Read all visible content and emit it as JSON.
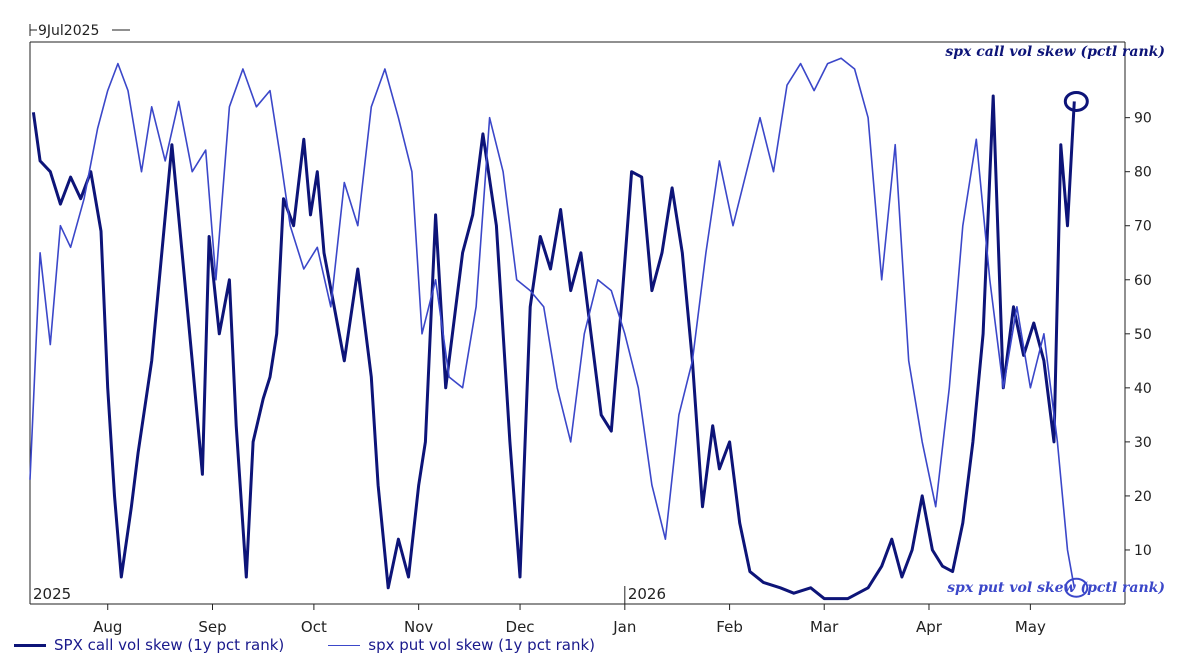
{
  "chart_data": {
    "type": "line",
    "top_label": "9Jul2025",
    "year_labels": [
      {
        "label": "2025",
        "date": "2025-07-09"
      },
      {
        "label": "2026",
        "date": "2026-01-01"
      }
    ],
    "month_labels": [
      {
        "label": "Aug",
        "date": "2025-08-01"
      },
      {
        "label": "Sep",
        "date": "2025-09-01"
      },
      {
        "label": "Oct",
        "date": "2025-10-01"
      },
      {
        "label": "Nov",
        "date": "2025-11-01"
      },
      {
        "label": "Dec",
        "date": "2025-12-01"
      },
      {
        "label": "Jan",
        "date": "2026-01-01"
      },
      {
        "label": "Feb",
        "date": "2026-02-01"
      },
      {
        "label": "Mar",
        "date": "2026-03-01"
      },
      {
        "label": "Apr",
        "date": "2026-04-01"
      },
      {
        "label": "May",
        "date": "2026-05-01"
      }
    ],
    "x_range": [
      "2025-07-09",
      "2026-05-29"
    ],
    "y_axis": {
      "position": "right",
      "ticks": [
        10,
        20,
        30,
        40,
        50,
        60,
        70,
        80,
        90
      ],
      "ylim": [
        0,
        104
      ]
    },
    "grid": false,
    "legend_position": "bottom-left",
    "series": [
      {
        "name": "SPX call vol skew (1y pct rank)",
        "color": "#0d1478",
        "annotation": "spx call vol skew (pctl rank)",
        "points": [
          [
            "2025-07-10",
            91
          ],
          [
            "2025-07-12",
            82
          ],
          [
            "2025-07-15",
            80
          ],
          [
            "2025-07-18",
            74
          ],
          [
            "2025-07-21",
            79
          ],
          [
            "2025-07-24",
            75
          ],
          [
            "2025-07-27",
            80
          ],
          [
            "2025-07-30",
            69
          ],
          [
            "2025-08-01",
            40
          ],
          [
            "2025-08-03",
            20
          ],
          [
            "2025-08-05",
            5
          ],
          [
            "2025-08-08",
            18
          ],
          [
            "2025-08-10",
            28
          ],
          [
            "2025-08-14",
            45
          ],
          [
            "2025-08-17",
            65
          ],
          [
            "2025-08-20",
            85
          ],
          [
            "2025-08-23",
            65
          ],
          [
            "2025-08-26",
            45
          ],
          [
            "2025-08-29",
            24
          ],
          [
            "2025-08-31",
            68
          ],
          [
            "2025-09-03",
            50
          ],
          [
            "2025-09-06",
            60
          ],
          [
            "2025-09-08",
            33
          ],
          [
            "2025-09-11",
            5
          ],
          [
            "2025-09-13",
            30
          ],
          [
            "2025-09-16",
            38
          ],
          [
            "2025-09-18",
            42
          ],
          [
            "2025-09-20",
            50
          ],
          [
            "2025-09-22",
            75
          ],
          [
            "2025-09-25",
            70
          ],
          [
            "2025-09-28",
            86
          ],
          [
            "2025-09-30",
            72
          ],
          [
            "2025-10-02",
            80
          ],
          [
            "2025-10-04",
            65
          ],
          [
            "2025-10-07",
            55
          ],
          [
            "2025-10-10",
            45
          ],
          [
            "2025-10-14",
            62
          ],
          [
            "2025-10-18",
            42
          ],
          [
            "2025-10-20",
            22
          ],
          [
            "2025-10-23",
            3
          ],
          [
            "2025-10-26",
            12
          ],
          [
            "2025-10-29",
            5
          ],
          [
            "2025-11-01",
            22
          ],
          [
            "2025-11-03",
            30
          ],
          [
            "2025-11-06",
            72
          ],
          [
            "2025-11-09",
            40
          ],
          [
            "2025-11-12",
            55
          ],
          [
            "2025-11-14",
            65
          ],
          [
            "2025-11-17",
            72
          ],
          [
            "2025-11-20",
            87
          ],
          [
            "2025-11-24",
            70
          ],
          [
            "2025-11-28",
            30
          ],
          [
            "2025-12-01",
            5
          ],
          [
            "2025-12-04",
            55
          ],
          [
            "2025-12-07",
            68
          ],
          [
            "2025-12-10",
            62
          ],
          [
            "2025-12-13",
            73
          ],
          [
            "2025-12-16",
            58
          ],
          [
            "2025-12-19",
            65
          ],
          [
            "2025-12-22",
            50
          ],
          [
            "2025-12-25",
            35
          ],
          [
            "2025-12-28",
            32
          ],
          [
            "2025-12-31",
            55
          ],
          [
            "2026-01-03",
            80
          ],
          [
            "2026-01-06",
            79
          ],
          [
            "2026-01-09",
            58
          ],
          [
            "2026-01-12",
            65
          ],
          [
            "2026-01-15",
            77
          ],
          [
            "2026-01-18",
            65
          ],
          [
            "2026-01-21",
            45
          ],
          [
            "2026-01-24",
            18
          ],
          [
            "2026-01-27",
            33
          ],
          [
            "2026-01-29",
            25
          ],
          [
            "2026-02-01",
            30
          ],
          [
            "2026-02-04",
            15
          ],
          [
            "2026-02-07",
            6
          ],
          [
            "2026-02-11",
            4
          ],
          [
            "2026-02-16",
            3
          ],
          [
            "2026-02-20",
            2
          ],
          [
            "2026-02-25",
            3
          ],
          [
            "2026-03-01",
            1
          ],
          [
            "2026-03-08",
            1
          ],
          [
            "2026-03-14",
            3
          ],
          [
            "2026-03-18",
            7
          ],
          [
            "2026-03-21",
            12
          ],
          [
            "2026-03-24",
            5
          ],
          [
            "2026-03-27",
            10
          ],
          [
            "2026-03-30",
            20
          ],
          [
            "2026-04-02",
            10
          ],
          [
            "2026-04-05",
            7
          ],
          [
            "2026-04-08",
            6
          ],
          [
            "2026-04-11",
            15
          ],
          [
            "2026-04-14",
            30
          ],
          [
            "2026-04-17",
            50
          ],
          [
            "2026-04-20",
            94
          ],
          [
            "2026-04-23",
            40
          ],
          [
            "2026-04-26",
            55
          ],
          [
            "2026-04-29",
            46
          ],
          [
            "2026-05-02",
            52
          ],
          [
            "2026-05-05",
            45
          ],
          [
            "2026-05-08",
            30
          ],
          [
            "2026-05-10",
            85
          ],
          [
            "2026-05-12",
            70
          ],
          [
            "2026-05-14",
            93
          ]
        ]
      },
      {
        "name": "spx put vol skew (1y pct rank)",
        "color": "#3b47c9",
        "annotation": "spx put vol skew (pctl rank)",
        "points": [
          [
            "2025-07-09",
            23
          ],
          [
            "2025-07-12",
            65
          ],
          [
            "2025-07-15",
            48
          ],
          [
            "2025-07-18",
            70
          ],
          [
            "2025-07-21",
            66
          ],
          [
            "2025-07-25",
            75
          ],
          [
            "2025-07-29",
            88
          ],
          [
            "2025-08-01",
            95
          ],
          [
            "2025-08-04",
            100
          ],
          [
            "2025-08-07",
            95
          ],
          [
            "2025-08-11",
            80
          ],
          [
            "2025-08-14",
            92
          ],
          [
            "2025-08-18",
            82
          ],
          [
            "2025-08-22",
            93
          ],
          [
            "2025-08-26",
            80
          ],
          [
            "2025-08-30",
            84
          ],
          [
            "2025-09-02",
            60
          ],
          [
            "2025-09-06",
            92
          ],
          [
            "2025-09-10",
            99
          ],
          [
            "2025-09-14",
            92
          ],
          [
            "2025-09-18",
            95
          ],
          [
            "2025-09-21",
            83
          ],
          [
            "2025-09-24",
            70
          ],
          [
            "2025-09-28",
            62
          ],
          [
            "2025-10-02",
            66
          ],
          [
            "2025-10-06",
            55
          ],
          [
            "2025-10-10",
            78
          ],
          [
            "2025-10-14",
            70
          ],
          [
            "2025-10-18",
            92
          ],
          [
            "2025-10-22",
            99
          ],
          [
            "2025-10-26",
            90
          ],
          [
            "2025-10-30",
            80
          ],
          [
            "2025-11-02",
            50
          ],
          [
            "2025-11-06",
            60
          ],
          [
            "2025-11-10",
            42
          ],
          [
            "2025-11-14",
            40
          ],
          [
            "2025-11-18",
            55
          ],
          [
            "2025-11-22",
            90
          ],
          [
            "2025-11-26",
            80
          ],
          [
            "2025-11-30",
            60
          ],
          [
            "2025-12-04",
            58
          ],
          [
            "2025-12-08",
            55
          ],
          [
            "2025-12-12",
            40
          ],
          [
            "2025-12-16",
            30
          ],
          [
            "2025-12-20",
            50
          ],
          [
            "2025-12-24",
            60
          ],
          [
            "2025-12-28",
            58
          ],
          [
            "2026-01-01",
            50
          ],
          [
            "2026-01-05",
            40
          ],
          [
            "2026-01-09",
            22
          ],
          [
            "2026-01-13",
            12
          ],
          [
            "2026-01-17",
            35
          ],
          [
            "2026-01-21",
            45
          ],
          [
            "2026-01-25",
            65
          ],
          [
            "2026-01-29",
            82
          ],
          [
            "2026-02-02",
            70
          ],
          [
            "2026-02-06",
            80
          ],
          [
            "2026-02-10",
            90
          ],
          [
            "2026-02-14",
            80
          ],
          [
            "2026-02-18",
            96
          ],
          [
            "2026-02-22",
            100
          ],
          [
            "2026-02-26",
            95
          ],
          [
            "2026-03-02",
            100
          ],
          [
            "2026-03-06",
            101
          ],
          [
            "2026-03-10",
            99
          ],
          [
            "2026-03-14",
            90
          ],
          [
            "2026-03-18",
            60
          ],
          [
            "2026-03-22",
            85
          ],
          [
            "2026-03-26",
            45
          ],
          [
            "2026-03-30",
            30
          ],
          [
            "2026-04-03",
            18
          ],
          [
            "2026-04-07",
            40
          ],
          [
            "2026-04-11",
            70
          ],
          [
            "2026-04-15",
            86
          ],
          [
            "2026-04-19",
            60
          ],
          [
            "2026-04-23",
            40
          ],
          [
            "2026-04-27",
            55
          ],
          [
            "2026-05-01",
            40
          ],
          [
            "2026-05-05",
            50
          ],
          [
            "2026-05-09",
            30
          ],
          [
            "2026-05-12",
            10
          ],
          [
            "2026-05-14",
            3
          ]
        ]
      }
    ]
  },
  "legend": [
    {
      "label": "SPX call vol skew (1y pct rank)",
      "color": "#0d1478"
    },
    {
      "label": "spx put vol skew (1y pct rank)",
      "color": "#3b47c9"
    }
  ]
}
